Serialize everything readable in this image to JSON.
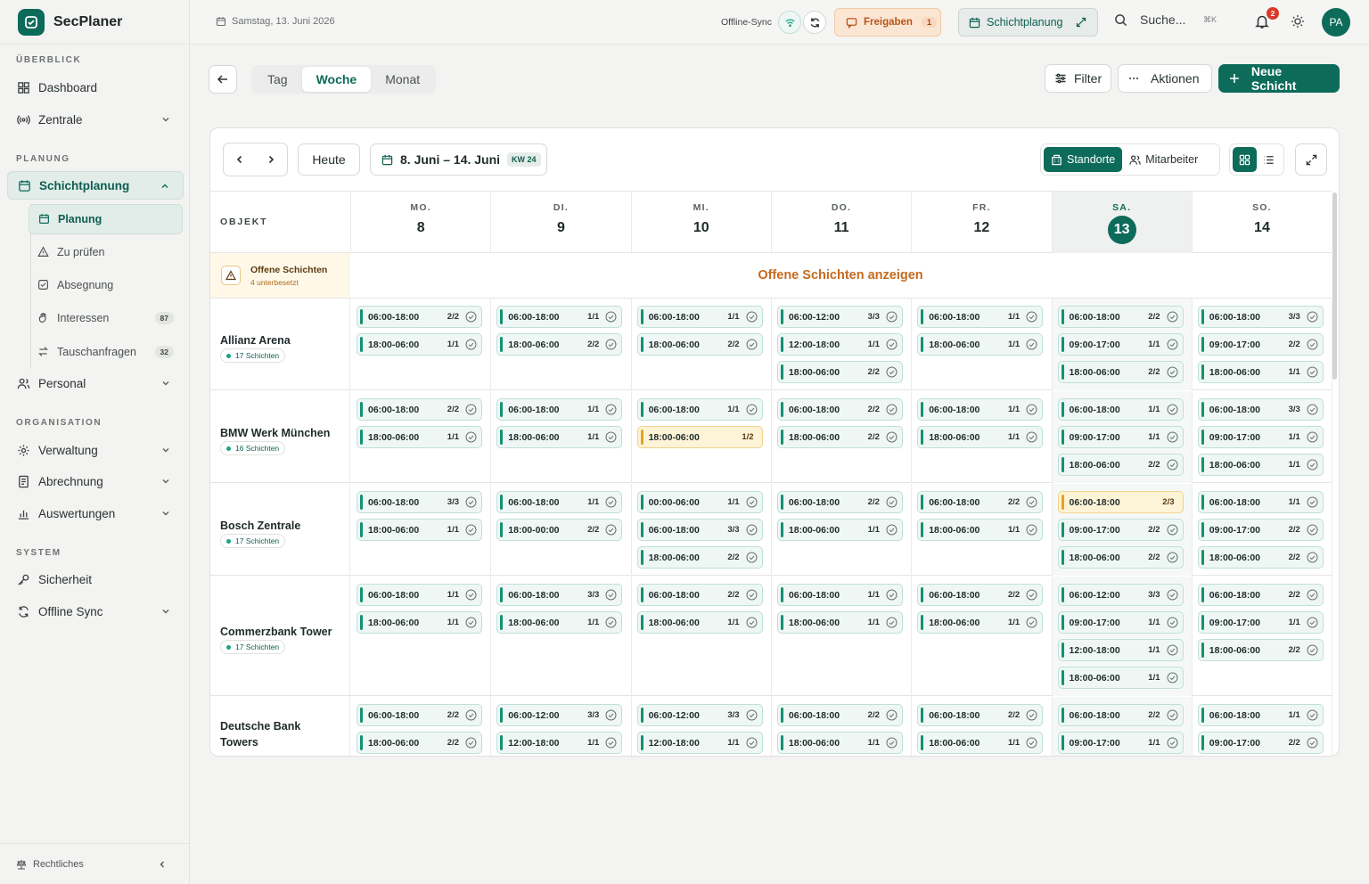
{
  "app": {
    "name": "SecPlaner"
  },
  "sidebar": {
    "sections": {
      "overview": "ÜBERBLICK",
      "planning": "PLANUNG",
      "organization": "ORGANISATION",
      "system": "SYSTEM"
    },
    "items": {
      "dashboard": "Dashboard",
      "zentrale": "Zentrale",
      "schichtplanung": "Schichtplanung",
      "planung": "Planung",
      "zu_pruefen": "Zu prüfen",
      "absegnung": "Absegnung",
      "interessen": "Interessen",
      "interessen_count": "87",
      "tauschanfragen": "Tauschanfragen",
      "tauschanfragen_count": "32",
      "personal": "Personal",
      "verwaltung": "Verwaltung",
      "abrechnung": "Abrechnung",
      "auswertungen": "Auswertungen",
      "sicherheit": "Sicherheit",
      "offline_sync": "Offline Sync"
    },
    "footer": "Rechtliches"
  },
  "topbar": {
    "date": "Samstag, 13. Juni 2026",
    "sync_label": "Offline-Sync",
    "freigaben_label": "Freigaben",
    "freigaben_count": "1",
    "schichtplanung_label": "Schichtplanung",
    "search_label": "Suche...",
    "search_shortcut": "⌘K",
    "notifications": "2",
    "avatar": "PA"
  },
  "toolbar": {
    "tabs": [
      "Tag",
      "Woche",
      "Monat"
    ],
    "active_tab": "Woche",
    "filter": "Filter",
    "actions": "Aktionen",
    "new_shift": "Neue Schicht"
  },
  "calendar": {
    "today_label": "Heute",
    "range": "8. Juni – 14. Juni",
    "week": "KW 24",
    "view_standorte": "Standorte",
    "view_mitarbeiter": "Mitarbeiter",
    "object_header": "OBJEKT",
    "days": [
      {
        "name": "MO.",
        "num": "8"
      },
      {
        "name": "DI.",
        "num": "9"
      },
      {
        "name": "MI.",
        "num": "10"
      },
      {
        "name": "DO.",
        "num": "11"
      },
      {
        "name": "FR.",
        "num": "12"
      },
      {
        "name": "SA.",
        "num": "13",
        "today": true
      },
      {
        "name": "SO.",
        "num": "14"
      }
    ],
    "open_shifts": {
      "title": "Offene Schichten",
      "subtitle": "4 unterbesetzt",
      "link": "Offene Schichten anzeigen"
    },
    "objects": [
      {
        "name": "Allianz Arena",
        "count": "17 Schichten",
        "days": [
          [
            [
              "06:00-18:00",
              "2/2"
            ],
            [
              "18:00-06:00",
              "1/1"
            ]
          ],
          [
            [
              "06:00-18:00",
              "1/1"
            ],
            [
              "18:00-06:00",
              "2/2"
            ]
          ],
          [
            [
              "06:00-18:00",
              "1/1"
            ],
            [
              "18:00-06:00",
              "2/2"
            ]
          ],
          [
            [
              "06:00-12:00",
              "3/3"
            ],
            [
              "12:00-18:00",
              "1/1"
            ],
            [
              "18:00-06:00",
              "2/2"
            ]
          ],
          [
            [
              "06:00-18:00",
              "1/1"
            ],
            [
              "18:00-06:00",
              "1/1"
            ]
          ],
          [
            [
              "06:00-18:00",
              "2/2"
            ],
            [
              "09:00-17:00",
              "1/1"
            ],
            [
              "18:00-06:00",
              "2/2"
            ]
          ],
          [
            [
              "06:00-18:00",
              "3/3"
            ],
            [
              "09:00-17:00",
              "2/2"
            ],
            [
              "18:00-06:00",
              "1/1"
            ]
          ]
        ]
      },
      {
        "name": "BMW Werk München",
        "count": "16 Schichten",
        "days": [
          [
            [
              "06:00-18:00",
              "2/2"
            ],
            [
              "18:00-06:00",
              "1/1"
            ]
          ],
          [
            [
              "06:00-18:00",
              "1/1"
            ],
            [
              "18:00-06:00",
              "1/1"
            ]
          ],
          [
            [
              "06:00-18:00",
              "1/1"
            ],
            [
              "18:00-06:00",
              "1/2",
              "warn"
            ]
          ],
          [
            [
              "06:00-18:00",
              "2/2"
            ],
            [
              "18:00-06:00",
              "2/2"
            ]
          ],
          [
            [
              "06:00-18:00",
              "1/1"
            ],
            [
              "18:00-06:00",
              "1/1"
            ]
          ],
          [
            [
              "06:00-18:00",
              "1/1"
            ],
            [
              "09:00-17:00",
              "1/1"
            ],
            [
              "18:00-06:00",
              "2/2"
            ]
          ],
          [
            [
              "06:00-18:00",
              "3/3"
            ],
            [
              "09:00-17:00",
              "1/1"
            ],
            [
              "18:00-06:00",
              "1/1"
            ]
          ]
        ]
      },
      {
        "name": "Bosch Zentrale",
        "count": "17 Schichten",
        "days": [
          [
            [
              "06:00-18:00",
              "3/3"
            ],
            [
              "18:00-06:00",
              "1/1"
            ]
          ],
          [
            [
              "06:00-18:00",
              "1/1"
            ],
            [
              "18:00-00:00",
              "2/2"
            ]
          ],
          [
            [
              "00:00-06:00",
              "1/1"
            ],
            [
              "06:00-18:00",
              "3/3"
            ],
            [
              "18:00-06:00",
              "2/2"
            ]
          ],
          [
            [
              "06:00-18:00",
              "2/2"
            ],
            [
              "18:00-06:00",
              "1/1"
            ]
          ],
          [
            [
              "06:00-18:00",
              "2/2"
            ],
            [
              "18:00-06:00",
              "1/1"
            ]
          ],
          [
            [
              "06:00-18:00",
              "2/3",
              "warn"
            ],
            [
              "09:00-17:00",
              "2/2"
            ],
            [
              "18:00-06:00",
              "2/2"
            ]
          ],
          [
            [
              "06:00-18:00",
              "1/1"
            ],
            [
              "09:00-17:00",
              "2/2"
            ],
            [
              "18:00-06:00",
              "2/2"
            ]
          ]
        ]
      },
      {
        "name": "Commerzbank Tower",
        "count": "17 Schichten",
        "days": [
          [
            [
              "06:00-18:00",
              "1/1"
            ],
            [
              "18:00-06:00",
              "1/1"
            ]
          ],
          [
            [
              "06:00-18:00",
              "3/3"
            ],
            [
              "18:00-06:00",
              "1/1"
            ]
          ],
          [
            [
              "06:00-18:00",
              "2/2"
            ],
            [
              "18:00-06:00",
              "1/1"
            ]
          ],
          [
            [
              "06:00-18:00",
              "1/1"
            ],
            [
              "18:00-06:00",
              "1/1"
            ]
          ],
          [
            [
              "06:00-18:00",
              "2/2"
            ],
            [
              "18:00-06:00",
              "1/1"
            ]
          ],
          [
            [
              "06:00-12:00",
              "3/3"
            ],
            [
              "09:00-17:00",
              "1/1"
            ],
            [
              "12:00-18:00",
              "1/1"
            ],
            [
              "18:00-06:00",
              "1/1"
            ]
          ],
          [
            [
              "06:00-18:00",
              "2/2"
            ],
            [
              "09:00-17:00",
              "1/1"
            ],
            [
              "18:00-06:00",
              "2/2"
            ]
          ]
        ]
      },
      {
        "name": "Deutsche Bank Towers",
        "count": "",
        "days": [
          [
            [
              "06:00-18:00",
              "2/2"
            ],
            [
              "18:00-06:00",
              "2/2"
            ]
          ],
          [
            [
              "06:00-12:00",
              "3/3"
            ],
            [
              "12:00-18:00",
              "1/1"
            ]
          ],
          [
            [
              "06:00-12:00",
              "3/3"
            ],
            [
              "12:00-18:00",
              "1/1"
            ]
          ],
          [
            [
              "06:00-18:00",
              "2/2"
            ],
            [
              "18:00-06:00",
              "1/1"
            ]
          ],
          [
            [
              "06:00-18:00",
              "2/2"
            ],
            [
              "18:00-06:00",
              "1/1"
            ]
          ],
          [
            [
              "06:00-18:00",
              "2/2"
            ],
            [
              "09:00-17:00",
              "1/1"
            ]
          ],
          [
            [
              "06:00-18:00",
              "1/1"
            ],
            [
              "09:00-17:00",
              "2/2"
            ]
          ]
        ]
      }
    ]
  },
  "colors": {
    "brand": "#0d6b5a",
    "warning": "#e8a21f",
    "open_link": "#c56a1e"
  }
}
